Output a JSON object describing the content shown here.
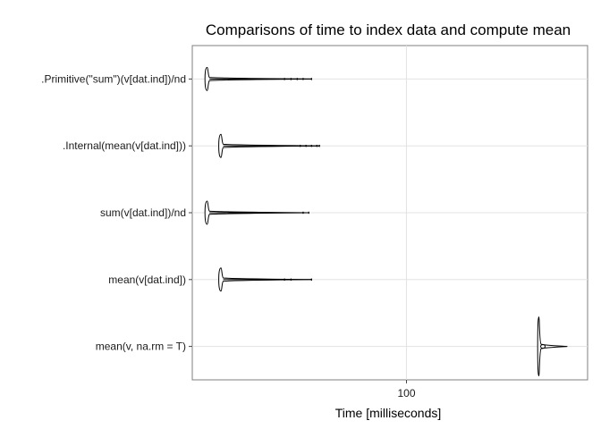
{
  "chart_data": {
    "type": "violin",
    "title": "Comparisons of time to index data and compute mean",
    "xlabel": "Time [milliseconds]",
    "ylabel": "",
    "x_scale": "log",
    "x_ticks": [
      100
    ],
    "x_tick_labels": [
      "100"
    ],
    "xlim": [
      20,
      390
    ],
    "grid": true,
    "categories": [
      ".Primitive(\"sum\")(v[dat.ind])/nd",
      ".Internal(mean(v[dat.ind]))",
      "sum(v[dat.ind])/nd",
      "mean(v[dat.ind])",
      "mean(v, na.rm = T)"
    ],
    "series": [
      {
        "category": ".Primitive(\"sum\")(v[dat.ind])/nd",
        "min": 22,
        "mode": 22.2,
        "max": 49,
        "outliers": [
          40,
          42,
          44,
          46,
          49
        ]
      },
      {
        "category": ".Internal(mean(v[dat.ind]))",
        "min": 24.4,
        "mode": 24.7,
        "max": 52,
        "outliers": [
          33,
          45,
          47,
          49,
          51,
          52
        ]
      },
      {
        "category": "sum(v[dat.ind])/nd",
        "min": 22,
        "mode": 22.2,
        "max": 48,
        "outliers": [
          46,
          48
        ]
      },
      {
        "category": "mean(v[dat.ind])",
        "min": 24.4,
        "mode": 24.7,
        "max": 49,
        "outliers": [
          40,
          42,
          49
        ]
      },
      {
        "category": "mean(v, na.rm = T)",
        "min": 268,
        "mode": 275,
        "max": 335,
        "outliers": []
      }
    ]
  }
}
